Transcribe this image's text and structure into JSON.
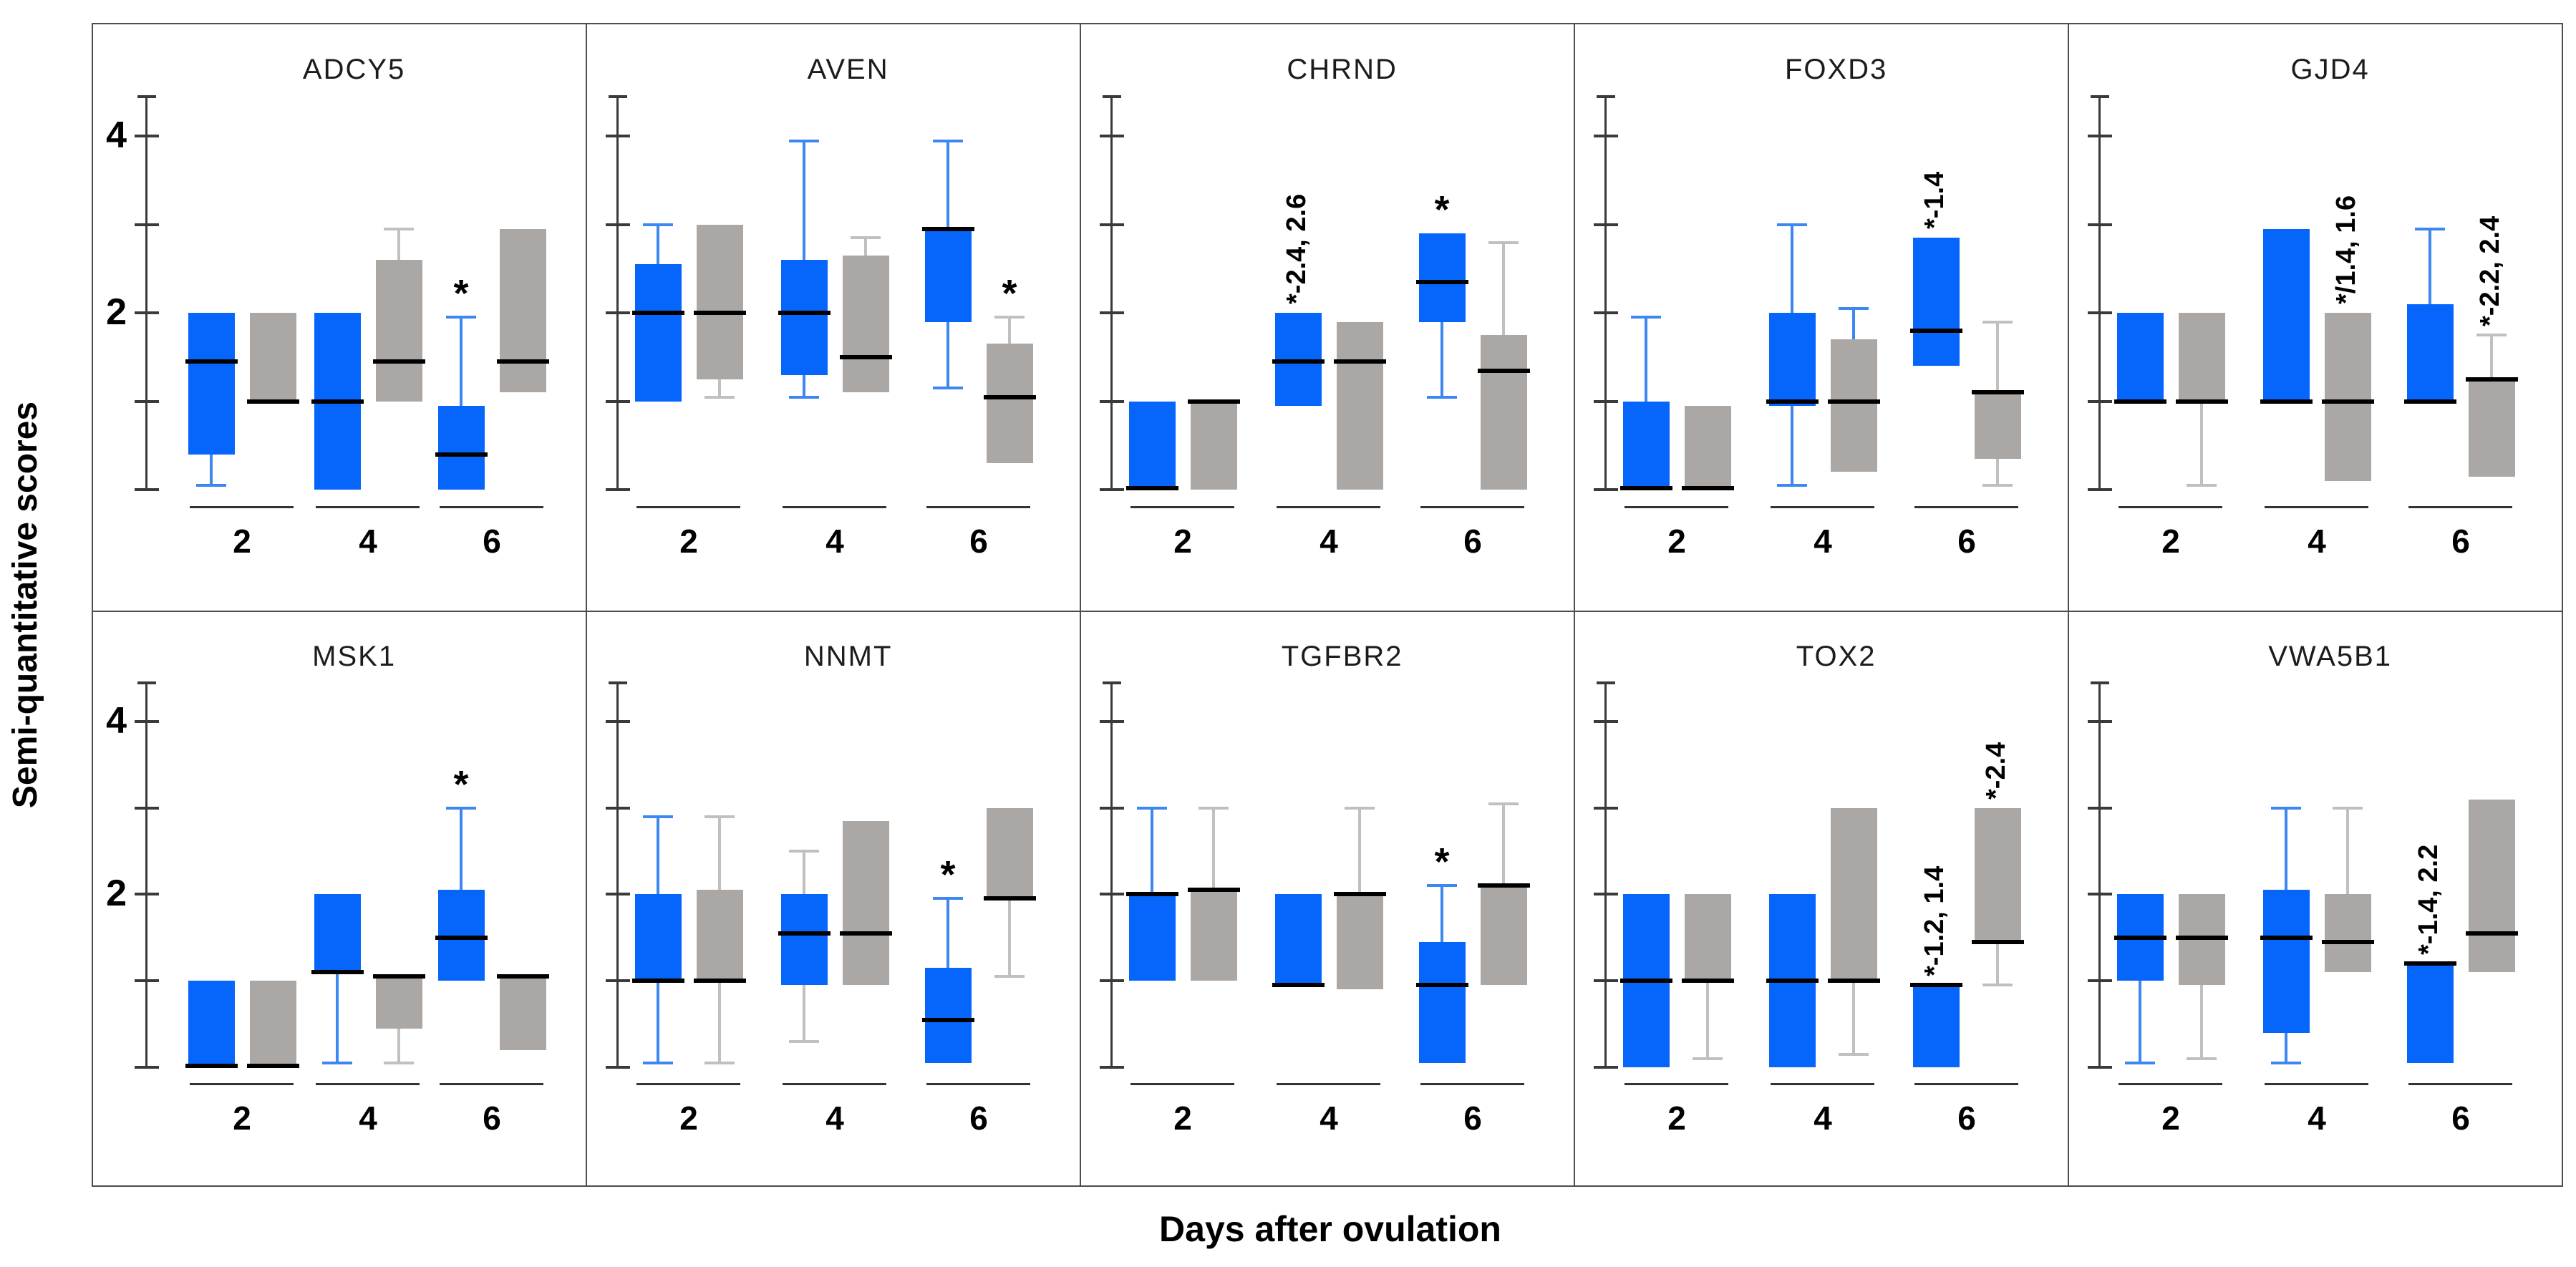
{
  "labels": {
    "y_axis": "Semi-quantitative scores",
    "x_axis": "Days after ovulation"
  },
  "chart_data": {
    "type": "boxplot-grid",
    "description": "Grouped box plots of semi-quantitative scores per gene; blue vs gray group at days 2, 4, 6 after ovulation",
    "ylabel": "Semi-quantitative scores",
    "xlabel": "Days after ovulation",
    "ylim": [
      0,
      4.5
    ],
    "y_ticks": [
      0,
      1,
      2,
      3,
      4
    ],
    "y_tick_labels_shown": [
      "2",
      "4"
    ],
    "days": [
      "2",
      "4",
      "6"
    ],
    "grid": {
      "rows": 2,
      "cols": 5
    },
    "colors": {
      "blue_box": "#0666fb",
      "gray_box": "#aba7a4",
      "blue_whisker": "#3d87f2",
      "gray_whisker": "#c2bfbc",
      "median": "#000000",
      "axis": "#3a3a3a",
      "panel_border": "#4d4d4d"
    },
    "panels": [
      {
        "gene": "ADCY5",
        "row": 0,
        "col": 0,
        "boxes": [
          {
            "day": "2",
            "color": "blue",
            "q1": 0.4,
            "median": 1.45,
            "q3": 2.0,
            "wlo": 0.05
          },
          {
            "day": "2",
            "color": "gray",
            "q1": 1.0,
            "median": 1.0,
            "q3": 2.0
          },
          {
            "day": "4",
            "color": "blue",
            "q1": 0.0,
            "median": 1.0,
            "q3": 2.0
          },
          {
            "day": "4",
            "color": "gray",
            "q1": 1.0,
            "median": 1.45,
            "q3": 2.6,
            "whi": 2.95
          },
          {
            "day": "6",
            "color": "blue",
            "q1": 0.0,
            "median": 0.4,
            "q3": 0.95,
            "whi": 1.95,
            "ann": "*"
          },
          {
            "day": "6",
            "color": "gray",
            "q1": 1.1,
            "median": 1.45,
            "q3": 2.95
          }
        ]
      },
      {
        "gene": "AVEN",
        "row": 0,
        "col": 1,
        "boxes": [
          {
            "day": "2",
            "color": "blue",
            "q1": 1.0,
            "median": 2.0,
            "q3": 2.55,
            "whi": 3.0
          },
          {
            "day": "2",
            "color": "gray",
            "q1": 1.25,
            "median": 2.0,
            "q3": 3.0,
            "wlo": 1.05
          },
          {
            "day": "4",
            "color": "blue",
            "q1": 1.3,
            "median": 2.0,
            "q3": 2.6,
            "whi": 3.95,
            "wlo": 1.05
          },
          {
            "day": "4",
            "color": "gray",
            "q1": 1.1,
            "median": 1.5,
            "q3": 2.65,
            "whi": 2.85
          },
          {
            "day": "6",
            "color": "blue",
            "q1": 1.9,
            "median": 2.95,
            "q3": 2.95,
            "whi": 3.95,
            "wlo": 1.15
          },
          {
            "day": "6",
            "color": "gray",
            "q1": 0.3,
            "median": 1.05,
            "q3": 1.65,
            "whi": 1.95,
            "ann": "*"
          }
        ]
      },
      {
        "gene": "CHRND",
        "row": 0,
        "col": 2,
        "boxes": [
          {
            "day": "2",
            "color": "blue",
            "q1": 0.0,
            "median": 0.02,
            "q3": 1.0
          },
          {
            "day": "2",
            "color": "gray",
            "q1": 0.0,
            "median": 1.0,
            "q3": 1.0
          },
          {
            "day": "4",
            "color": "blue",
            "q1": 0.95,
            "median": 1.45,
            "q3": 2.0,
            "ann": "*-2.4, 2.6",
            "ann_rotated": true
          },
          {
            "day": "4",
            "color": "gray",
            "q1": 0.0,
            "median": 1.45,
            "q3": 1.9
          },
          {
            "day": "6",
            "color": "blue",
            "q1": 1.9,
            "median": 2.35,
            "q3": 2.9,
            "wlo": 1.05,
            "ann": "*"
          },
          {
            "day": "6",
            "color": "gray",
            "q1": 0.0,
            "median": 1.35,
            "q3": 1.75,
            "whi": 2.8
          }
        ]
      },
      {
        "gene": "FOXD3",
        "row": 0,
        "col": 3,
        "boxes": [
          {
            "day": "2",
            "color": "blue",
            "q1": 0.0,
            "median": 0.02,
            "q3": 1.0,
            "whi": 1.95
          },
          {
            "day": "2",
            "color": "gray",
            "q1": 0.0,
            "median": 0.02,
            "q3": 0.95
          },
          {
            "day": "4",
            "color": "blue",
            "q1": 0.95,
            "median": 1.0,
            "q3": 2.0,
            "whi": 3.0,
            "wlo": 0.05
          },
          {
            "day": "4",
            "color": "gray",
            "q1": 0.2,
            "median": 1.0,
            "q3": 1.7,
            "whi": 2.05,
            "whisker_color": "blue"
          },
          {
            "day": "6",
            "color": "blue",
            "q1": 1.4,
            "median": 1.8,
            "q3": 2.85,
            "ann": "*-1.4",
            "ann_rotated": true
          },
          {
            "day": "6",
            "color": "gray",
            "q1": 0.35,
            "median": 1.1,
            "q3": 1.1,
            "whi": 1.9,
            "wlo": 0.05
          }
        ]
      },
      {
        "gene": "GJD4",
        "row": 0,
        "col": 4,
        "boxes": [
          {
            "day": "2",
            "color": "blue",
            "q1": 1.0,
            "median": 1.0,
            "q3": 2.0
          },
          {
            "day": "2",
            "color": "gray",
            "q1": 1.0,
            "median": 1.0,
            "q3": 2.0,
            "wlo": 0.05
          },
          {
            "day": "4",
            "color": "blue",
            "q1": 1.0,
            "median": 1.0,
            "q3": 2.95
          },
          {
            "day": "4",
            "color": "gray",
            "q1": 0.1,
            "median": 1.0,
            "q3": 2.0,
            "ann": "*/1.4, 1.6",
            "ann_rotated": true
          },
          {
            "day": "6",
            "color": "blue",
            "q1": 1.0,
            "median": 1.0,
            "q3": 2.1,
            "whi": 2.95
          },
          {
            "day": "6",
            "color": "gray",
            "q1": 0.15,
            "median": 1.25,
            "q3": 1.25,
            "whi": 1.75,
            "ann": "*-2.2, 2.4",
            "ann_rotated": true
          }
        ]
      },
      {
        "gene": "MSK1",
        "row": 1,
        "col": 0,
        "boxes": [
          {
            "day": "2",
            "color": "blue",
            "q1": 0.0,
            "median": 0.02,
            "q3": 1.0
          },
          {
            "day": "2",
            "color": "gray",
            "q1": 0.0,
            "median": 0.02,
            "q3": 1.0
          },
          {
            "day": "4",
            "color": "blue",
            "q1": 1.1,
            "median": 1.1,
            "q3": 2.0,
            "wlo": 0.05
          },
          {
            "day": "4",
            "color": "gray",
            "q1": 0.45,
            "median": 1.05,
            "q3": 1.05,
            "wlo": 0.05
          },
          {
            "day": "6",
            "color": "blue",
            "q1": 1.0,
            "median": 1.5,
            "q3": 2.05,
            "whi": 3.0,
            "ann": "*"
          },
          {
            "day": "6",
            "color": "gray",
            "q1": 0.2,
            "median": 1.05,
            "q3": 1.05
          }
        ]
      },
      {
        "gene": "NNMT",
        "row": 1,
        "col": 1,
        "boxes": [
          {
            "day": "2",
            "color": "blue",
            "q1": 1.0,
            "median": 1.0,
            "q3": 2.0,
            "whi": 2.9,
            "wlo": 0.05
          },
          {
            "day": "2",
            "color": "gray",
            "q1": 1.0,
            "median": 1.0,
            "q3": 2.05,
            "whi": 2.9,
            "wlo": 0.05
          },
          {
            "day": "4",
            "color": "blue",
            "q1": 0.95,
            "median": 1.55,
            "q3": 2.0,
            "whi": 2.5,
            "wlo": 0.3,
            "whisker_color": "gray"
          },
          {
            "day": "4",
            "color": "gray",
            "q1": 0.95,
            "median": 1.55,
            "q3": 2.85
          },
          {
            "day": "6",
            "color": "blue",
            "q1": 0.05,
            "median": 0.55,
            "q3": 1.15,
            "whi": 1.95,
            "ann": "*"
          },
          {
            "day": "6",
            "color": "gray",
            "q1": 1.95,
            "median": 1.95,
            "q3": 3.0,
            "wlo": 1.05
          }
        ]
      },
      {
        "gene": "TGFBR2",
        "row": 1,
        "col": 2,
        "boxes": [
          {
            "day": "2",
            "color": "blue",
            "q1": 1.0,
            "median": 2.0,
            "q3": 2.0,
            "whi": 3.0
          },
          {
            "day": "2",
            "color": "gray",
            "q1": 1.0,
            "median": 2.05,
            "q3": 2.05,
            "whi": 3.0
          },
          {
            "day": "4",
            "color": "blue",
            "q1": 0.95,
            "median": 0.95,
            "q3": 2.0
          },
          {
            "day": "4",
            "color": "gray",
            "q1": 0.9,
            "median": 2.0,
            "q3": 2.0,
            "whi": 3.0
          },
          {
            "day": "6",
            "color": "blue",
            "q1": 0.05,
            "median": 0.95,
            "q3": 1.45,
            "whi": 2.1,
            "ann": "*"
          },
          {
            "day": "6",
            "color": "gray",
            "q1": 0.95,
            "median": 2.1,
            "q3": 2.1,
            "whi": 3.05
          }
        ]
      },
      {
        "gene": "TOX2",
        "row": 1,
        "col": 3,
        "boxes": [
          {
            "day": "2",
            "color": "blue",
            "q1": 0.0,
            "median": 1.0,
            "q3": 2.0
          },
          {
            "day": "2",
            "color": "gray",
            "q1": 1.0,
            "median": 1.0,
            "q3": 2.0,
            "wlo": 0.1
          },
          {
            "day": "4",
            "color": "blue",
            "q1": 0.0,
            "median": 1.0,
            "q3": 2.0
          },
          {
            "day": "4",
            "color": "gray",
            "q1": 1.0,
            "median": 1.0,
            "q3": 3.0,
            "wlo": 0.15
          },
          {
            "day": "6",
            "color": "blue",
            "q1": 0.0,
            "median": 0.95,
            "q3": 0.95,
            "ann": "*-1.2, 1.4",
            "ann_rotated": true
          },
          {
            "day": "6",
            "color": "gray",
            "q1": 1.45,
            "median": 1.45,
            "q3": 3.0,
            "wlo": 0.95,
            "ann": "*-2.4",
            "ann_rotated": true
          }
        ]
      },
      {
        "gene": "VWA5B1",
        "row": 1,
        "col": 4,
        "boxes": [
          {
            "day": "2",
            "color": "blue",
            "q1": 1.0,
            "median": 1.5,
            "q3": 2.0,
            "wlo": 0.05
          },
          {
            "day": "2",
            "color": "gray",
            "q1": 0.95,
            "median": 1.5,
            "q3": 2.0,
            "wlo": 0.1
          },
          {
            "day": "4",
            "color": "blue",
            "q1": 0.4,
            "median": 1.5,
            "q3": 2.05,
            "whi": 3.0,
            "wlo": 0.05
          },
          {
            "day": "4",
            "color": "gray",
            "q1": 1.1,
            "median": 1.45,
            "q3": 2.0,
            "whi": 3.0
          },
          {
            "day": "6",
            "color": "blue",
            "q1": 0.05,
            "median": 1.2,
            "q3": 1.2,
            "ann": "*-1.4, 2.2",
            "ann_rotated": true
          },
          {
            "day": "6",
            "color": "gray",
            "q1": 1.1,
            "median": 1.55,
            "q3": 3.1
          }
        ]
      }
    ]
  }
}
